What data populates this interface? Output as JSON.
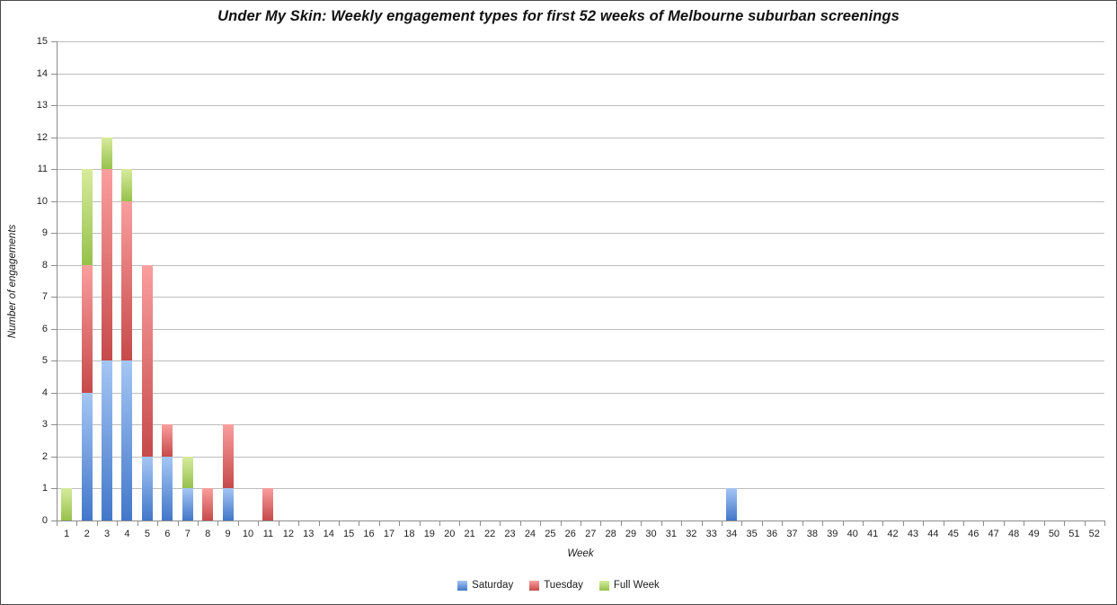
{
  "chart_data": {
    "type": "bar",
    "stacked": true,
    "title": "Under My Skin: Weekly engagement types for first 52 weeks of Melbourne suburban screenings",
    "xlabel": "Week",
    "ylabel": "Number of engagements",
    "ylim": [
      0,
      15
    ],
    "ytick_interval": 1,
    "grid": true,
    "legend_position": "bottom",
    "grid_color": "#BDBDBD",
    "axis_color": "#8C8C8C",
    "categories": [
      1,
      2,
      3,
      4,
      5,
      6,
      7,
      8,
      9,
      10,
      11,
      12,
      13,
      14,
      15,
      16,
      17,
      18,
      19,
      20,
      21,
      22,
      23,
      24,
      25,
      26,
      27,
      28,
      29,
      30,
      31,
      32,
      33,
      34,
      35,
      36,
      37,
      38,
      39,
      40,
      41,
      42,
      43,
      44,
      45,
      46,
      47,
      48,
      49,
      50,
      51,
      52
    ],
    "series": [
      {
        "name": "Saturday",
        "color_top": "#A4C6F4",
        "color_bottom": "#4377C9",
        "values": [
          0,
          4,
          5,
          5,
          2,
          2,
          1,
          0,
          1,
          0,
          0,
          0,
          0,
          0,
          0,
          0,
          0,
          0,
          0,
          0,
          0,
          0,
          0,
          0,
          0,
          0,
          0,
          0,
          0,
          0,
          0,
          0,
          0,
          1,
          0,
          0,
          0,
          0,
          0,
          0,
          0,
          0,
          0,
          0,
          0,
          0,
          0,
          0,
          0,
          0,
          0,
          0
        ]
      },
      {
        "name": "Tuesday",
        "color_top": "#FA9E9E",
        "color_bottom": "#C64A4A",
        "values": [
          0,
          4,
          6,
          5,
          6,
          1,
          0,
          1,
          2,
          0,
          1,
          0,
          0,
          0,
          0,
          0,
          0,
          0,
          0,
          0,
          0,
          0,
          0,
          0,
          0,
          0,
          0,
          0,
          0,
          0,
          0,
          0,
          0,
          0,
          0,
          0,
          0,
          0,
          0,
          0,
          0,
          0,
          0,
          0,
          0,
          0,
          0,
          0,
          0,
          0,
          0,
          0
        ]
      },
      {
        "name": "Full Week",
        "color_top": "#D7EB9C",
        "color_bottom": "#96C14D",
        "values": [
          1,
          3,
          1,
          1,
          0,
          0,
          1,
          0,
          0,
          0,
          0,
          0,
          0,
          0,
          0,
          0,
          0,
          0,
          0,
          0,
          0,
          0,
          0,
          0,
          0,
          0,
          0,
          0,
          0,
          0,
          0,
          0,
          0,
          0,
          0,
          0,
          0,
          0,
          0,
          0,
          0,
          0,
          0,
          0,
          0,
          0,
          0,
          0,
          0,
          0,
          0,
          0
        ]
      }
    ]
  }
}
